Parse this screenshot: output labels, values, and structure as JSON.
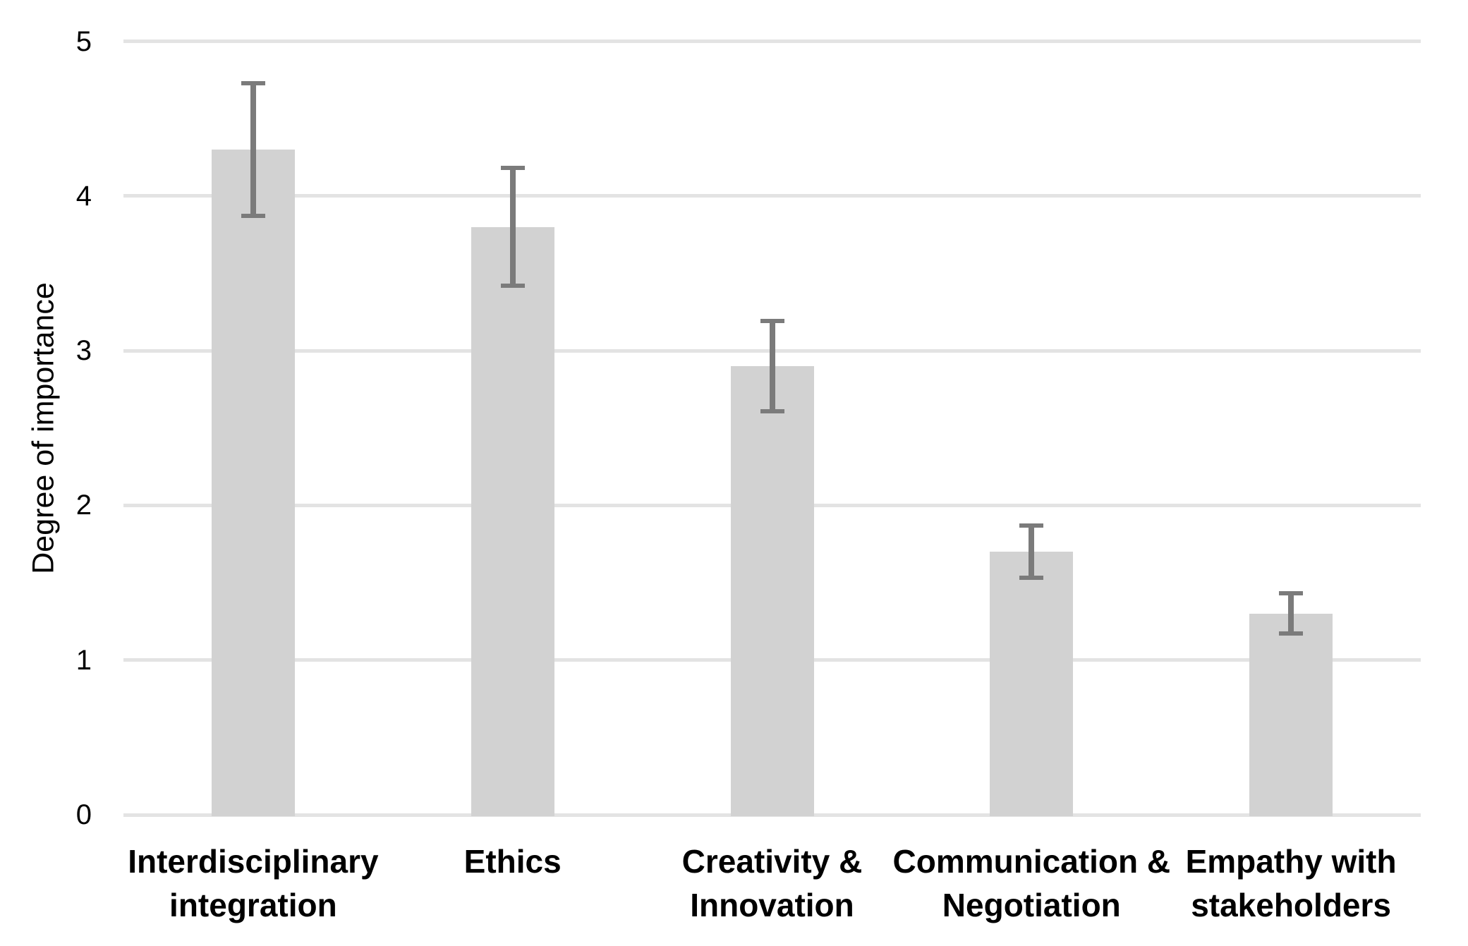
{
  "chart_data": {
    "type": "bar",
    "title": "",
    "xlabel": "",
    "ylabel": "Degree of importance",
    "ylim": [
      0,
      5
    ],
    "yticks": [
      0,
      1,
      2,
      3,
      4,
      5
    ],
    "grid": true,
    "legend_position": "none",
    "categories": [
      "Interdisciplinary integration",
      "Ethics",
      "Creativity & Innovation",
      "Communication & Negotiation",
      "Empathy with stakeholders"
    ],
    "category_label_lines": [
      [
        "Interdisciplinary",
        "integration"
      ],
      [
        "Ethics"
      ],
      [
        "Creativity &",
        "Innovation"
      ],
      [
        "Communication &",
        "Negotiation"
      ],
      [
        "Empathy with",
        "stakeholders"
      ]
    ],
    "values": [
      4.3,
      3.8,
      2.9,
      1.7,
      1.3
    ],
    "error_bars": [
      {
        "low": 3.87,
        "high": 4.73
      },
      {
        "low": 3.42,
        "high": 4.18
      },
      {
        "low": 2.61,
        "high": 3.19
      },
      {
        "low": 1.53,
        "high": 1.87
      },
      {
        "low": 1.17,
        "high": 1.43
      }
    ],
    "colors": {
      "bar_fill": "#d2d2d2",
      "error_bar": "#7b7b7b",
      "gridline": "#e3e3e3",
      "text": "#000000",
      "background": "#ffffff"
    }
  }
}
